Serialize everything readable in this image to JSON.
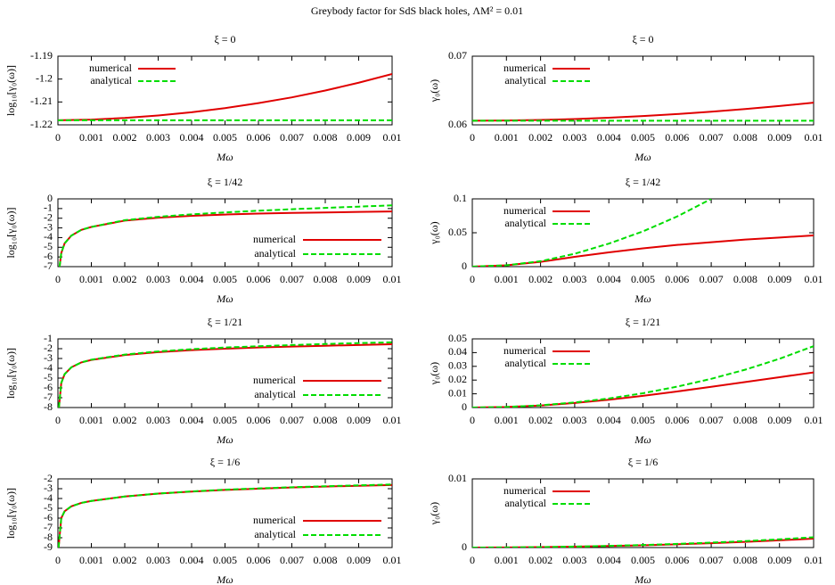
{
  "title": "Greybody factor for SdS black holes, ΛM² = 0.01",
  "chart_data": [
    {
      "type": "line",
      "title": "ξ = 0",
      "xlabel": "Mω",
      "ylabel": "log₁₀[γ₀(ω)]",
      "legend": "upper left",
      "x": [
        0,
        0.001,
        0.002,
        0.003,
        0.004,
        0.005,
        0.006,
        0.007,
        0.008,
        0.009,
        0.01
      ],
      "xlim": [
        0,
        0.01
      ],
      "xticks": [
        0,
        0.001,
        0.002,
        0.003,
        0.004,
        0.005,
        0.006,
        0.007,
        0.008,
        0.009,
        0.01
      ],
      "ylim": [
        -1.22,
        -1.19
      ],
      "yticks": [
        -1.22,
        -1.21,
        -1.2,
        -1.19
      ],
      "series": [
        {
          "name": "numerical",
          "color": "#e00000",
          "style": "solid",
          "values": [
            -1.218,
            -1.2177,
            -1.217,
            -1.2159,
            -1.2145,
            -1.2127,
            -1.2105,
            -1.208,
            -1.205,
            -1.2016,
            -1.1978
          ]
        },
        {
          "name": "analytical",
          "color": "#00dd00",
          "style": "dashed",
          "values": [
            -1.218,
            -1.218,
            -1.218,
            -1.218,
            -1.218,
            -1.218,
            -1.218,
            -1.218,
            -1.218,
            -1.218,
            -1.218
          ]
        }
      ]
    },
    {
      "type": "line",
      "title": "ξ = 0",
      "xlabel": "Mω",
      "ylabel": "γ₀(ω)",
      "legend": "upper left",
      "x": [
        0,
        0.001,
        0.002,
        0.003,
        0.004,
        0.005,
        0.006,
        0.007,
        0.008,
        0.009,
        0.01
      ],
      "xlim": [
        0,
        0.01
      ],
      "xticks": [
        0,
        0.001,
        0.002,
        0.003,
        0.004,
        0.005,
        0.006,
        0.007,
        0.008,
        0.009,
        0.01
      ],
      "ylim": [
        0.06,
        0.07
      ],
      "yticks": [
        0.06,
        0.07
      ],
      "series": [
        {
          "name": "numerical",
          "color": "#e00000",
          "style": "solid",
          "values": [
            0.0606,
            0.06063,
            0.06071,
            0.06085,
            0.06104,
            0.06128,
            0.06157,
            0.06191,
            0.0623,
            0.06274,
            0.06323
          ]
        },
        {
          "name": "analytical",
          "color": "#00dd00",
          "style": "dashed",
          "values": [
            0.0606,
            0.0606,
            0.0606,
            0.0606,
            0.0606,
            0.0606,
            0.0606,
            0.0606,
            0.0606,
            0.0606,
            0.0606
          ]
        }
      ]
    },
    {
      "type": "line",
      "title": "ξ = 1/42",
      "xlabel": "Mω",
      "ylabel": "log₁₀[γ₀(ω)]",
      "legend": "lower right",
      "x": [
        5e-05,
        0.0001,
        0.0002,
        0.0004,
        0.0007,
        0.001,
        0.002,
        0.003,
        0.004,
        0.005,
        0.006,
        0.007,
        0.008,
        0.009,
        0.01
      ],
      "xlim": [
        0,
        0.01
      ],
      "xticks": [
        0,
        0.001,
        0.002,
        0.003,
        0.004,
        0.005,
        0.006,
        0.007,
        0.008,
        0.009,
        0.01
      ],
      "ylim": [
        -7,
        0
      ],
      "yticks": [
        -7,
        -6,
        -5,
        -4,
        -3,
        -2,
        -1,
        0
      ],
      "series": [
        {
          "name": "numerical",
          "color": "#e00000",
          "style": "solid",
          "values": [
            -7,
            -5.6,
            -4.6,
            -3.8,
            -3.2,
            -2.9,
            -2.25,
            -1.95,
            -1.75,
            -1.62,
            -1.52,
            -1.45,
            -1.4,
            -1.35,
            -1.3
          ]
        },
        {
          "name": "analytical",
          "color": "#00dd00",
          "style": "dashed",
          "values": [
            -7,
            -5.6,
            -4.6,
            -3.8,
            -3.2,
            -2.9,
            -2.2,
            -1.85,
            -1.6,
            -1.4,
            -1.22,
            -1.07,
            -0.93,
            -0.8,
            -0.67
          ]
        }
      ]
    },
    {
      "type": "line",
      "title": "ξ = 1/42",
      "xlabel": "Mω",
      "ylabel": "γ₀(ω)",
      "legend": "upper left",
      "x": [
        0,
        0.001,
        0.002,
        0.003,
        0.004,
        0.005,
        0.006,
        0.007,
        0.008,
        0.009,
        0.01
      ],
      "xlim": [
        0,
        0.01
      ],
      "xticks": [
        0,
        0.001,
        0.002,
        0.003,
        0.004,
        0.005,
        0.006,
        0.007,
        0.008,
        0.009,
        0.01
      ],
      "ylim": [
        0,
        0.1
      ],
      "yticks": [
        0,
        0.05,
        0.1
      ],
      "series": [
        {
          "name": "numerical",
          "color": "#e00000",
          "style": "solid",
          "values": [
            0,
            0.002,
            0.007,
            0.0145,
            0.021,
            0.027,
            0.032,
            0.036,
            0.04,
            0.043,
            0.046
          ]
        },
        {
          "name": "analytical",
          "color": "#00dd00",
          "style": "dashed",
          "values": [
            0,
            0.002,
            0.008,
            0.019,
            0.034,
            0.052,
            0.074,
            0.1,
            null,
            null,
            null
          ]
        }
      ]
    },
    {
      "type": "line",
      "title": "ξ = 1/21",
      "xlabel": "Mω",
      "ylabel": "log₁₀[γ₀(ω)]",
      "legend": "lower right",
      "x": [
        3e-05,
        0.0001,
        0.0002,
        0.0004,
        0.0007,
        0.001,
        0.002,
        0.003,
        0.004,
        0.005,
        0.006,
        0.007,
        0.008,
        0.009,
        0.01
      ],
      "xlim": [
        0,
        0.01
      ],
      "xticks": [
        0,
        0.001,
        0.002,
        0.003,
        0.004,
        0.005,
        0.006,
        0.007,
        0.008,
        0.009,
        0.01
      ],
      "ylim": [
        -8,
        -1
      ],
      "yticks": [
        -8,
        -7,
        -6,
        -5,
        -4,
        -3,
        -2,
        -1
      ],
      "series": [
        {
          "name": "numerical",
          "color": "#e00000",
          "style": "solid",
          "values": [
            -8,
            -5.5,
            -4.6,
            -3.9,
            -3.4,
            -3.15,
            -2.65,
            -2.35,
            -2.15,
            -2,
            -1.88,
            -1.78,
            -1.7,
            -1.62,
            -1.55
          ]
        },
        {
          "name": "analytical",
          "color": "#00dd00",
          "style": "dashed",
          "values": [
            -8,
            -5.5,
            -4.6,
            -3.9,
            -3.4,
            -3.12,
            -2.6,
            -2.28,
            -2.05,
            -1.88,
            -1.75,
            -1.63,
            -1.52,
            -1.43,
            -1.35
          ]
        }
      ]
    },
    {
      "type": "line",
      "title": "ξ = 1/21",
      "xlabel": "Mω",
      "ylabel": "γ₀(ω)",
      "legend": "upper left",
      "x": [
        0,
        0.001,
        0.002,
        0.003,
        0.004,
        0.005,
        0.006,
        0.007,
        0.008,
        0.009,
        0.01
      ],
      "xlim": [
        0,
        0.01
      ],
      "xticks": [
        0,
        0.001,
        0.002,
        0.003,
        0.004,
        0.005,
        0.006,
        0.007,
        0.008,
        0.009,
        0.01
      ],
      "ylim": [
        0,
        0.05
      ],
      "yticks": [
        0,
        0.01,
        0.02,
        0.03,
        0.04,
        0.05
      ],
      "series": [
        {
          "name": "numerical",
          "color": "#e00000",
          "style": "solid",
          "values": [
            0,
            0.0004,
            0.0015,
            0.0033,
            0.0057,
            0.0085,
            0.0117,
            0.0151,
            0.0186,
            0.0221,
            0.0256
          ]
        },
        {
          "name": "analytical",
          "color": "#00dd00",
          "style": "dashed",
          "values": [
            0,
            0.0004,
            0.0016,
            0.0037,
            0.0066,
            0.0104,
            0.0152,
            0.0209,
            0.0276,
            0.0355,
            0.0447
          ]
        }
      ]
    },
    {
      "type": "line",
      "title": "ξ = 1/6",
      "xlabel": "Mω",
      "ylabel": "log₁₀[γ₀(ω)]",
      "legend": "lower right",
      "x": [
        2e-05,
        0.0001,
        0.0002,
        0.0004,
        0.0007,
        0.001,
        0.002,
        0.003,
        0.004,
        0.005,
        0.006,
        0.007,
        0.008,
        0.009,
        0.01
      ],
      "xlim": [
        0,
        0.01
      ],
      "xticks": [
        0,
        0.001,
        0.002,
        0.003,
        0.004,
        0.005,
        0.006,
        0.007,
        0.008,
        0.009,
        0.01
      ],
      "ylim": [
        -9,
        -2
      ],
      "yticks": [
        -9,
        -8,
        -7,
        -6,
        -5,
        -4,
        -3,
        -2
      ],
      "series": [
        {
          "name": "numerical",
          "color": "#e00000",
          "style": "solid",
          "values": [
            -9,
            -6,
            -5.3,
            -4.8,
            -4.45,
            -4.25,
            -3.8,
            -3.5,
            -3.3,
            -3.13,
            -3,
            -2.88,
            -2.78,
            -2.7,
            -2.62
          ]
        },
        {
          "name": "analytical",
          "color": "#00dd00",
          "style": "dashed",
          "values": [
            -9,
            -6,
            -5.3,
            -4.8,
            -4.45,
            -4.25,
            -3.8,
            -3.5,
            -3.28,
            -3.1,
            -2.97,
            -2.85,
            -2.75,
            -2.66,
            -2.57
          ]
        }
      ]
    },
    {
      "type": "line",
      "title": "ξ = 1/6",
      "xlabel": "Mω",
      "ylabel": "γ₀(ω)",
      "legend": "upper left",
      "x": [
        0,
        0.001,
        0.002,
        0.003,
        0.004,
        0.005,
        0.006,
        0.007,
        0.008,
        0.009,
        0.01
      ],
      "xlim": [
        0,
        0.01
      ],
      "xticks": [
        0,
        0.001,
        0.002,
        0.003,
        0.004,
        0.005,
        0.006,
        0.007,
        0.008,
        0.009,
        0.01
      ],
      "ylim": [
        0,
        0.01
      ],
      "yticks": [
        0,
        0.01
      ],
      "series": [
        {
          "name": "numerical",
          "color": "#e00000",
          "style": "solid",
          "values": [
            0,
            2e-05,
            6e-05,
            0.00013,
            0.00022,
            0.00033,
            0.00047,
            0.00064,
            0.00083,
            0.00105,
            0.0013
          ]
        },
        {
          "name": "analytical",
          "color": "#00dd00",
          "style": "dashed",
          "values": [
            0,
            2e-05,
            6e-05,
            0.00014,
            0.00024,
            0.00037,
            0.00053,
            0.00072,
            0.00094,
            0.0012,
            0.0015
          ]
        }
      ]
    }
  ]
}
